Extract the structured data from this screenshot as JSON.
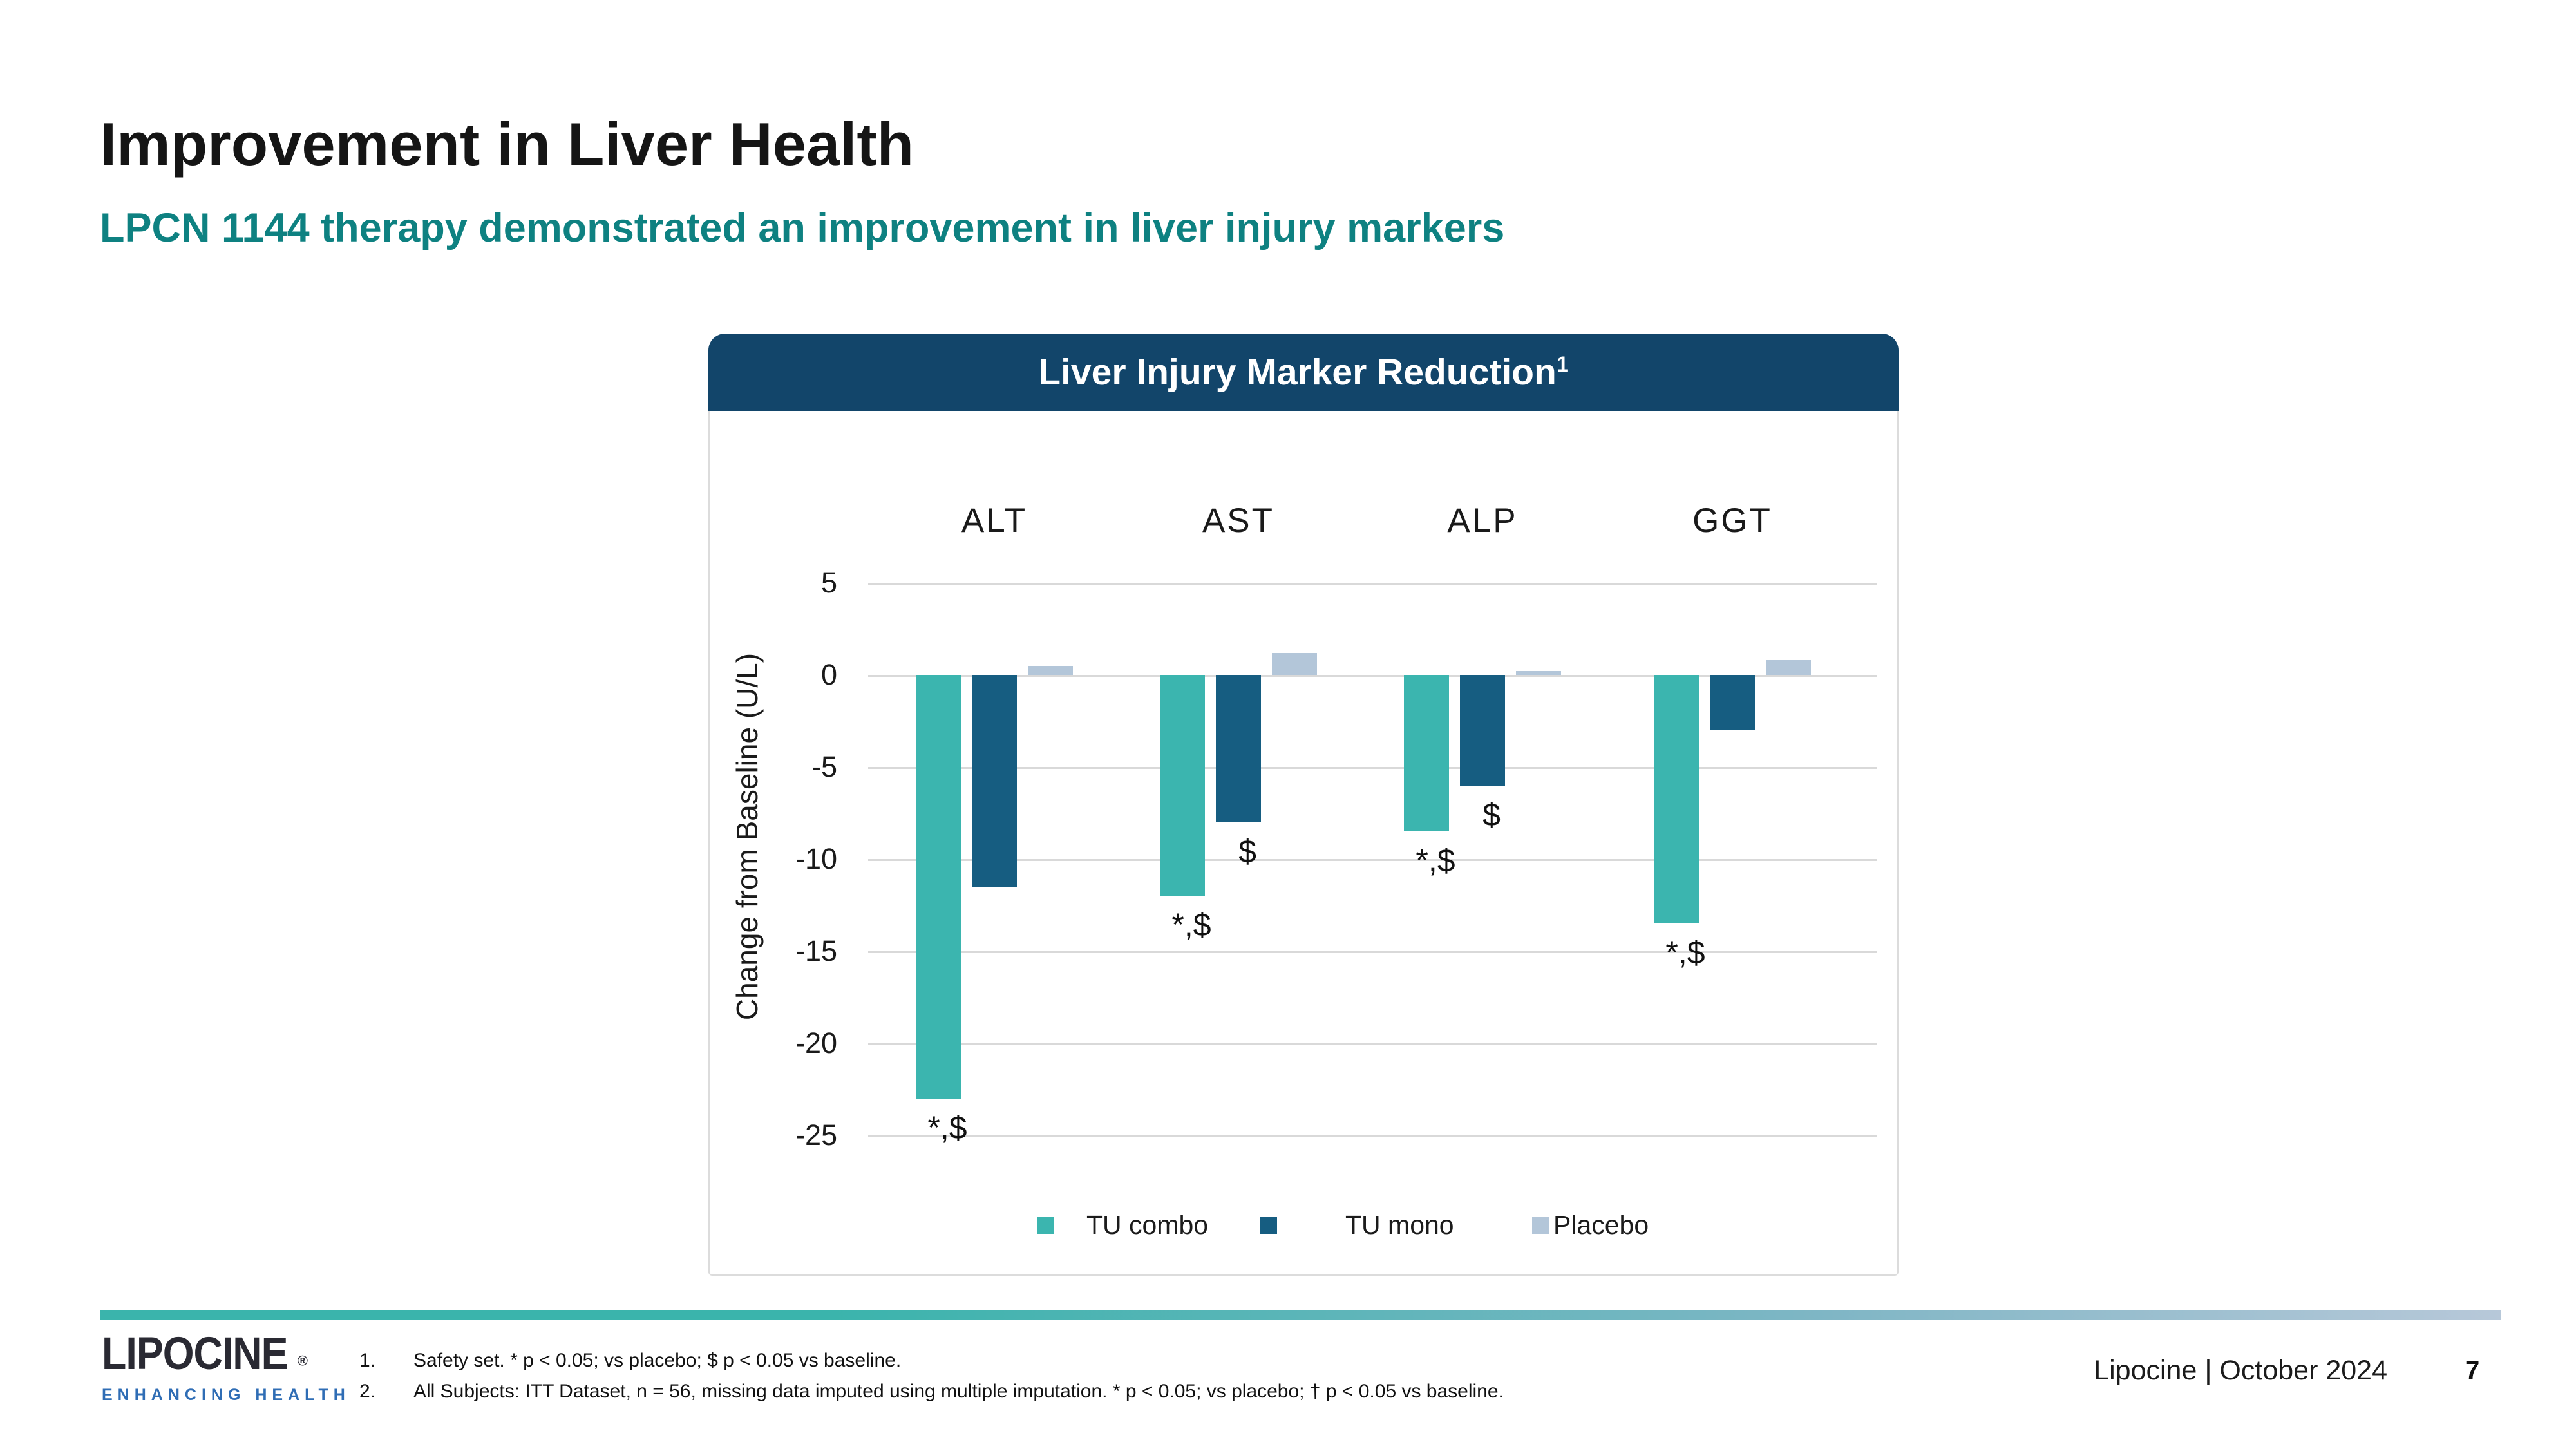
{
  "slide": {
    "title": "Improvement in Liver Health",
    "subtitle": "LPCN 1144 therapy demonstrated an improvement in liver injury markers"
  },
  "chart": {
    "panel_title": "Liver Injury Marker Reduction",
    "panel_title_superscript": "1"
  },
  "chart_data": {
    "type": "bar",
    "title": "Liver Injury Marker Reduction",
    "categories": [
      "ALT",
      "AST",
      "ALP",
      "GGT"
    ],
    "series": [
      {
        "name": "TU combo",
        "color": "#3bb5af",
        "values": [
          -23,
          -12,
          -8.5,
          -13.5
        ],
        "annotations": [
          "*,$",
          "*,$",
          "*,$",
          "*,$"
        ]
      },
      {
        "name": "TU mono",
        "color": "#165d81",
        "values": [
          -11.5,
          -8,
          -6,
          -3
        ],
        "annotations": [
          "",
          "$",
          "$",
          ""
        ]
      },
      {
        "name": "Placebo",
        "color": "#b3c6d9",
        "values": [
          0.5,
          1.2,
          0.2,
          0.8
        ],
        "annotations": [
          "",
          "",
          "",
          ""
        ]
      }
    ],
    "xlabel": "",
    "ylabel": "Change from Baseline (U/L)",
    "yticks": [
      5,
      0,
      -5,
      -10,
      -15,
      -20,
      -25
    ],
    "ylim": [
      -25,
      5
    ],
    "grid": "horizontal",
    "legend_position": "bottom"
  },
  "footer": {
    "logo_text": "LIPOCINE",
    "logo_reg": "®",
    "logo_tagline": "ENHANCING HEALTH",
    "footnotes": [
      {
        "num": "1.",
        "text": "Safety set. * p < 0.05; vs placebo; $ p < 0.05 vs baseline."
      },
      {
        "num": "2.",
        "text": "All Subjects: ITT Dataset, n = 56, missing data imputed using multiple imputation. * p < 0.05; vs placebo; † p < 0.05 vs baseline."
      }
    ],
    "credit": "Lipocine | October 2024",
    "page_number": "7"
  },
  "colors": {
    "accent_teal": "#0e8181",
    "header_bar": "#12456a",
    "gridline": "#d9d9d9",
    "divider_start": "#3ab4ac",
    "divider_end": "#b7c8d9",
    "logo_tagline_blue": "#2f6db5"
  }
}
